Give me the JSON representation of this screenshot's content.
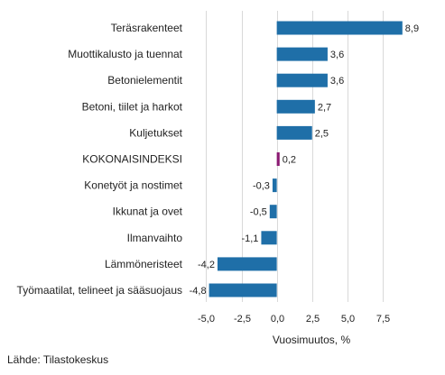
{
  "chart_data": {
    "type": "bar",
    "orientation": "horizontal",
    "title": "",
    "xlabel": "Vuosimuutos, %",
    "ylabel": "",
    "xlim": [
      -6.5,
      10
    ],
    "xticks": [
      -5.0,
      -2.5,
      0.0,
      2.5,
      5.0,
      7.5
    ],
    "xtick_labels": [
      "-5,0",
      "-2,5",
      "0,0",
      "2,5",
      "5,0",
      "7,5"
    ],
    "grid": "vertical gridlines",
    "categories": [
      "Teräsrakenteet",
      "Muottikalusto ja tuennat",
      "Betonielementit",
      "Betoni, tiilet ja harkot",
      "Kuljetukset",
      "KOKONAISINDEKSI",
      "Konetyöt ja nostimet",
      "Ikkunat ja ovet",
      "Ilmanvaihto",
      "Lämmöneristeet",
      "Työmaatilat, telineet ja sääsuojaus"
    ],
    "values": [
      8.9,
      3.6,
      3.6,
      2.7,
      2.5,
      0.2,
      -0.3,
      -0.5,
      -1.1,
      -4.2,
      -4.8
    ],
    "value_labels": [
      "8,9",
      "3,6",
      "3,6",
      "2,7",
      "2,5",
      "0,2",
      "-0,3",
      "-0,5",
      "-1,1",
      "-4,2",
      "-4,8"
    ],
    "colors": {
      "default": "#1f6fa8",
      "highlight": "#8b1a72",
      "highlight_category": "KOKONAISINDEKSI",
      "grid": "#d9d9d9"
    }
  },
  "source": "Lähde: Tilastokeskus"
}
